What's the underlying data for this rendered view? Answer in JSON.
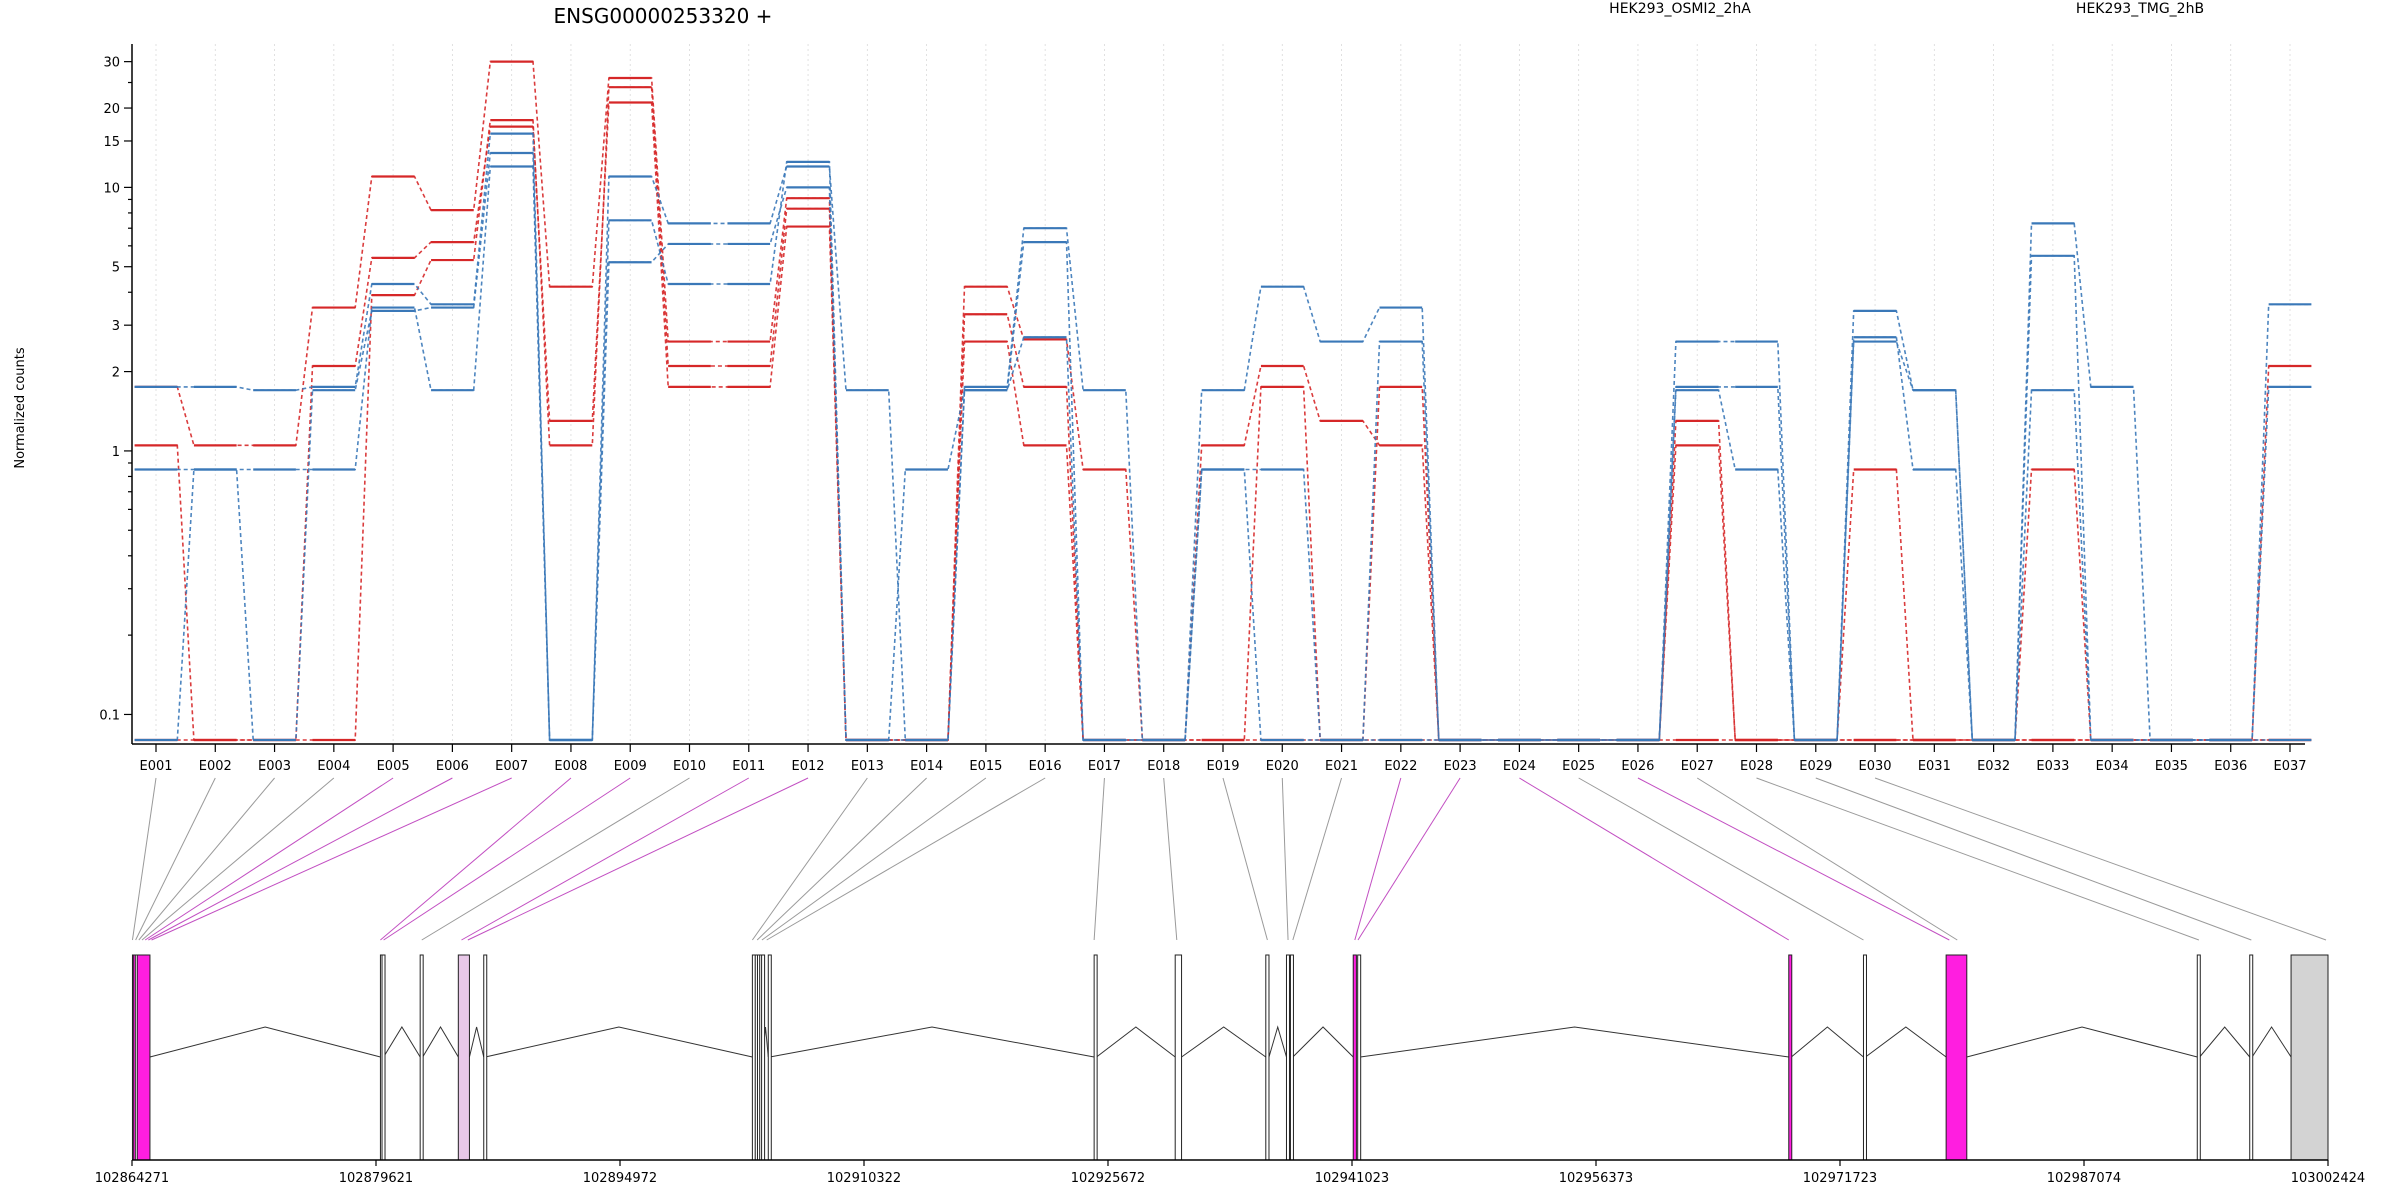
{
  "chart_data": {
    "type": "line",
    "title": "ENSG00000253320 +",
    "ylabel": "Normalized counts",
    "xlabel": "",
    "y_scale": "log",
    "ylim": [
      0.08,
      35
    ],
    "y_ticks": [
      0.1,
      1,
      2,
      3,
      5,
      10,
      15,
      20,
      30
    ],
    "y_tick_labels": [
      "0.1",
      "1",
      "2",
      "3",
      "5",
      "10",
      "15",
      "20",
      "30"
    ],
    "grid_vertical": true,
    "legend": {
      "placement": "top-right",
      "entries": [
        {
          "name": "HEK293_OSMI2_2hA",
          "color": "#d62728"
        },
        {
          "name": "HEK293_TMG_2hB",
          "color": "#3a78b8"
        }
      ]
    },
    "categories": [
      "E001",
      "E002",
      "E003",
      "E004",
      "E005",
      "E006",
      "E007",
      "E008",
      "E009",
      "E010",
      "E011",
      "E012",
      "E013",
      "E014",
      "E015",
      "E016",
      "E017",
      "E018",
      "E019",
      "E020",
      "E021",
      "E022",
      "E023",
      "E024",
      "E025",
      "E026",
      "E027",
      "E028",
      "E029",
      "E030",
      "E031",
      "E032",
      "E033",
      "E034",
      "E035",
      "E036",
      "E037"
    ],
    "series": [
      {
        "group": "HEK293_OSMI2_2hA",
        "color": "#d62728",
        "values": [
          1.75,
          1.05,
          1.05,
          3.5,
          11,
          8.2,
          30,
          4.2,
          26,
          2.6,
          2.6,
          9.1,
          0.08,
          0.08,
          4.2,
          2.65,
          0.85,
          0.08,
          1.05,
          2.1,
          1.3,
          1.05,
          0.08,
          0.08,
          0.08,
          0.08,
          1.05,
          0.08,
          0.08,
          0.85,
          0.08,
          0.08,
          0.85,
          0.08,
          0.08,
          0.08,
          2.1
        ]
      },
      {
        "group": "HEK293_OSMI2_2hA",
        "color": "#d62728",
        "values": [
          0.08,
          0.08,
          0.08,
          0.08,
          3.9,
          5.3,
          18,
          1.05,
          24,
          2.1,
          2.1,
          8.3,
          0.08,
          0.08,
          3.3,
          1.75,
          0.08,
          0.08,
          0.08,
          1.75,
          0.08,
          1.75,
          0.08,
          0.08,
          0.08,
          0.08,
          1.3,
          0.08,
          0.08,
          0.08,
          0.08,
          0.08,
          0.08,
          0.08,
          0.08,
          0.08,
          0.08
        ]
      },
      {
        "group": "HEK293_OSMI2_2hA",
        "color": "#d62728",
        "values": [
          1.05,
          0.08,
          0.08,
          2.1,
          5.4,
          6.2,
          17,
          1.3,
          21,
          1.75,
          1.75,
          7.1,
          0.08,
          0.08,
          2.6,
          1.05,
          0.08,
          0.08,
          0.08,
          0.08,
          0.08,
          0.08,
          0.08,
          0.08,
          0.08,
          0.08,
          0.08,
          0.08,
          0.08,
          0.08,
          0.08,
          0.08,
          0.08,
          0.08,
          0.08,
          0.08,
          0.08
        ]
      },
      {
        "group": "HEK293_TMG_2hB",
        "color": "#3a78b8",
        "values": [
          1.75,
          1.75,
          1.7,
          1.75,
          4.3,
          3.6,
          16,
          0.08,
          11,
          7.3,
          7.3,
          12,
          1.7,
          0.08,
          1.75,
          7,
          1.7,
          0.08,
          1.7,
          4.2,
          2.6,
          3.5,
          0.08,
          0.08,
          0.08,
          0.08,
          2.6,
          2.6,
          0.08,
          3.4,
          1.7,
          0.08,
          7.3,
          1.75,
          0.08,
          0.08,
          3.6
        ]
      },
      {
        "group": "HEK293_TMG_2hB",
        "color": "#3a78b8",
        "values": [
          0.85,
          0.85,
          0.85,
          0.85,
          3.5,
          1.7,
          12,
          0.08,
          5.2,
          6.1,
          6.1,
          10,
          0.08,
          0.08,
          1.7,
          6.2,
          0.08,
          0.08,
          0.85,
          0.85,
          0.08,
          2.6,
          0.08,
          0.08,
          0.08,
          0.08,
          1.75,
          1.75,
          0.08,
          2.7,
          0.85,
          0.08,
          5.5,
          0.08,
          0.08,
          0.08,
          1.75
        ]
      },
      {
        "group": "HEK293_TMG_2hB",
        "color": "#3a78b8",
        "values": [
          0.08,
          0.85,
          0.08,
          1.7,
          3.4,
          3.5,
          13.5,
          0.08,
          7.5,
          4.3,
          4.3,
          12.5,
          0.08,
          0.85,
          1.7,
          2.7,
          0.08,
          0.08,
          0.85,
          0.08,
          0.08,
          0.08,
          0.08,
          0.08,
          0.08,
          0.08,
          1.7,
          0.85,
          0.08,
          2.6,
          1.7,
          0.08,
          1.7,
          0.08,
          0.08,
          0.08,
          0.08
        ]
      }
    ],
    "exon_positions": [
      {
        "exon": "E001",
        "pos": 102864300,
        "highlight": false
      },
      {
        "exon": "E002",
        "pos": 102864500,
        "highlight": false
      },
      {
        "exon": "E003",
        "pos": 102864700,
        "highlight": false
      },
      {
        "exon": "E004",
        "pos": 102864900,
        "highlight": false
      },
      {
        "exon": "E005",
        "pos": 102865100,
        "highlight": true
      },
      {
        "exon": "E006",
        "pos": 102865300,
        "highlight": true
      },
      {
        "exon": "E007",
        "pos": 102865500,
        "highlight": true
      },
      {
        "exon": "E008",
        "pos": 102879900,
        "highlight": true
      },
      {
        "exon": "E009",
        "pos": 102880100,
        "highlight": true
      },
      {
        "exon": "E010",
        "pos": 102882500,
        "highlight": false
      },
      {
        "exon": "E011",
        "pos": 102885000,
        "highlight": true
      },
      {
        "exon": "E012",
        "pos": 102885400,
        "highlight": true
      },
      {
        "exon": "E013",
        "pos": 102903300,
        "highlight": false
      },
      {
        "exon": "E014",
        "pos": 102903600,
        "highlight": false
      },
      {
        "exon": "E015",
        "pos": 102903900,
        "highlight": false
      },
      {
        "exon": "E016",
        "pos": 102904200,
        "highlight": false
      },
      {
        "exon": "E017",
        "pos": 102924800,
        "highlight": false
      },
      {
        "exon": "E018",
        "pos": 102930000,
        "highlight": false
      },
      {
        "exon": "E019",
        "pos": 102935700,
        "highlight": false
      },
      {
        "exon": "E020",
        "pos": 102937000,
        "highlight": false
      },
      {
        "exon": "E021",
        "pos": 102937300,
        "highlight": false
      },
      {
        "exon": "E022",
        "pos": 102941200,
        "highlight": true
      },
      {
        "exon": "E023",
        "pos": 102941400,
        "highlight": true
      },
      {
        "exon": "E024",
        "pos": 102968500,
        "highlight": true
      },
      {
        "exon": "E025",
        "pos": 102973200,
        "highlight": false
      },
      {
        "exon": "E026",
        "pos": 102978600,
        "highlight": true
      },
      {
        "exon": "E027",
        "pos": 102979100,
        "highlight": false
      },
      {
        "exon": "E028",
        "pos": 102994300,
        "highlight": false
      },
      {
        "exon": "E029",
        "pos": 102997600,
        "highlight": false
      },
      {
        "exon": "E030",
        "pos": 103002300,
        "highlight": false
      }
    ],
    "gene_model": {
      "xlim": [
        102864271,
        103002424
      ],
      "x_ticks": [
        102864271,
        102879621,
        102894972,
        102910322,
        102925672,
        102941023,
        102956373,
        102971723,
        102987074,
        103002424
      ],
      "x_tick_labels": [
        "102864271",
        "102879621",
        "102894972",
        "102910322",
        "102925672",
        "102941023",
        "102956373",
        "102971723",
        "102987074",
        "103002424"
      ],
      "exons": [
        {
          "start": 102864300,
          "end": 102864330,
          "fill": "#ffffff"
        },
        {
          "start": 102864350,
          "end": 102864440,
          "fill": "#ff1ee0"
        },
        {
          "start": 102864480,
          "end": 102864560,
          "fill": "#ffffff"
        },
        {
          "start": 102864600,
          "end": 102865400,
          "fill": "#ff1ee0"
        },
        {
          "start": 102879900,
          "end": 102879960,
          "fill": "#ffffff"
        },
        {
          "start": 102880000,
          "end": 102880100,
          "fill": "#ffffff"
        },
        {
          "start": 102882400,
          "end": 102882560,
          "fill": "#ffffff"
        },
        {
          "start": 102884800,
          "end": 102885500,
          "fill": "#e8c8e8"
        },
        {
          "start": 102886400,
          "end": 102886500,
          "fill": "#ffffff"
        },
        {
          "start": 102903300,
          "end": 102903420,
          "fill": "#ffffff"
        },
        {
          "start": 102903480,
          "end": 102903560,
          "fill": "#ffffff"
        },
        {
          "start": 102903620,
          "end": 102903700,
          "fill": "#ffffff"
        },
        {
          "start": 102903760,
          "end": 102903830,
          "fill": "#ffffff"
        },
        {
          "start": 102903880,
          "end": 102903950,
          "fill": "#ffffff"
        },
        {
          "start": 102904300,
          "end": 102904400,
          "fill": "#ffffff"
        },
        {
          "start": 102924800,
          "end": 102924950,
          "fill": "#ffffff"
        },
        {
          "start": 102929900,
          "end": 102930300,
          "fill": "#ffffff"
        },
        {
          "start": 102935600,
          "end": 102935800,
          "fill": "#ffffff"
        },
        {
          "start": 102936900,
          "end": 102937050,
          "fill": "#ffffff"
        },
        {
          "start": 102937150,
          "end": 102937300,
          "fill": "#ffffff"
        },
        {
          "start": 102941100,
          "end": 102941300,
          "fill": "#ff1ee0"
        },
        {
          "start": 102941380,
          "end": 102941550,
          "fill": "#ffffff"
        },
        {
          "start": 102968500,
          "end": 102968660,
          "fill": "#ff1ee0"
        },
        {
          "start": 102973200,
          "end": 102973330,
          "fill": "#ffffff"
        },
        {
          "start": 102978400,
          "end": 102979700,
          "fill": "#ff1ee0"
        },
        {
          "start": 102994200,
          "end": 102994350,
          "fill": "#ffffff"
        },
        {
          "start": 102997500,
          "end": 102997650,
          "fill": "#ffffff"
        },
        {
          "start": 103000100,
          "end": 103002424,
          "fill": "#d3d3d3"
        }
      ]
    }
  }
}
